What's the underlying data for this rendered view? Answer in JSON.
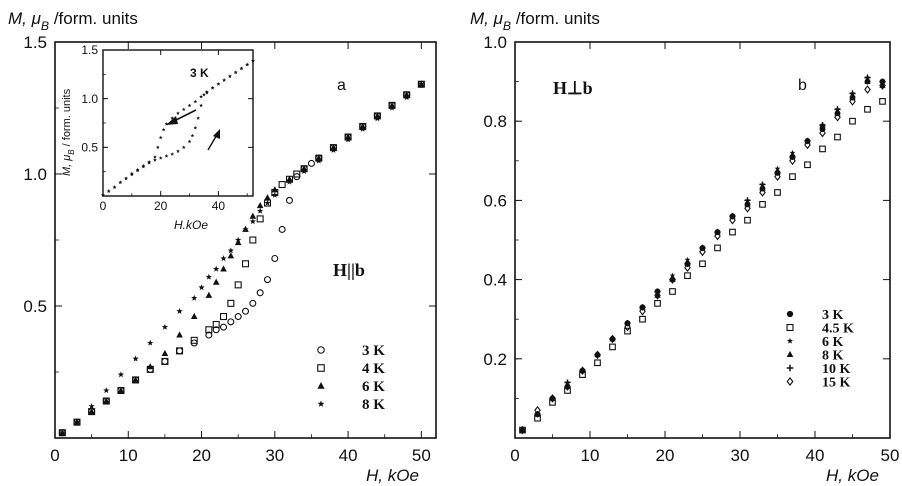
{
  "colors": {
    "ink": "#111111",
    "background": "#ffffff"
  },
  "chart_data": [
    {
      "panel": "a",
      "type": "scatter",
      "ylabel_prefix": "M, μ",
      "ylabel_sub": "B",
      "ylabel_suffix": "/form. units",
      "xlabel": "H, kOe",
      "xlim": [
        0,
        52
      ],
      "ylim": [
        0,
        1.5
      ],
      "xticks": [
        0,
        10,
        20,
        30,
        40,
        50
      ],
      "yticks": [
        0.5,
        1.0,
        1.5
      ],
      "ytick_labels": [
        "0.5",
        "1.0",
        "1.5"
      ],
      "panel_label": "a",
      "annotation": "H||b",
      "grid": false,
      "legend_position": "bottom-right",
      "series": [
        {
          "name": "3 K",
          "marker": "circle-open",
          "x": [
            1,
            3,
            5,
            7,
            9,
            11,
            13,
            15,
            17,
            19,
            21,
            22,
            23,
            24,
            25,
            26,
            27,
            28,
            29,
            30,
            31,
            32,
            33,
            34,
            35,
            36,
            38,
            40,
            42,
            44,
            46,
            48,
            50
          ],
          "y": [
            0.02,
            0.06,
            0.1,
            0.14,
            0.18,
            0.22,
            0.26,
            0.29,
            0.33,
            0.36,
            0.39,
            0.41,
            0.42,
            0.44,
            0.46,
            0.48,
            0.51,
            0.55,
            0.6,
            0.68,
            0.79,
            0.9,
            0.99,
            1.02,
            1.04,
            1.06,
            1.1,
            1.14,
            1.18,
            1.22,
            1.26,
            1.3,
            1.34
          ]
        },
        {
          "name": "4 K",
          "marker": "square-open",
          "x": [
            1,
            3,
            5,
            7,
            9,
            11,
            13,
            15,
            17,
            19,
            21,
            22,
            23,
            24,
            25,
            26,
            27,
            28,
            29,
            30,
            31,
            32,
            33,
            34,
            36,
            38,
            40,
            42,
            44,
            46,
            48,
            50
          ],
          "y": [
            0.02,
            0.06,
            0.1,
            0.14,
            0.18,
            0.22,
            0.26,
            0.29,
            0.33,
            0.37,
            0.41,
            0.43,
            0.46,
            0.51,
            0.58,
            0.66,
            0.75,
            0.83,
            0.89,
            0.93,
            0.96,
            0.98,
            1.0,
            1.02,
            1.06,
            1.1,
            1.14,
            1.18,
            1.22,
            1.26,
            1.3,
            1.34
          ]
        },
        {
          "name": "6 K",
          "marker": "triangle",
          "x": [
            1,
            3,
            5,
            7,
            9,
            11,
            13,
            15,
            17,
            19,
            21,
            22,
            23,
            24,
            25,
            26,
            27,
            28,
            29,
            30,
            32,
            34,
            36,
            38,
            40,
            42,
            44,
            46,
            48,
            50
          ],
          "y": [
            0.02,
            0.06,
            0.1,
            0.14,
            0.18,
            0.22,
            0.27,
            0.32,
            0.39,
            0.46,
            0.54,
            0.59,
            0.64,
            0.69,
            0.74,
            0.79,
            0.84,
            0.88,
            0.91,
            0.94,
            0.98,
            1.02,
            1.06,
            1.1,
            1.14,
            1.18,
            1.22,
            1.26,
            1.3,
            1.34
          ]
        },
        {
          "name": "8 K",
          "marker": "star",
          "x": [
            1,
            3,
            5,
            7,
            9,
            11,
            13,
            15,
            17,
            19,
            20,
            21,
            22,
            23,
            24,
            25,
            26,
            27,
            28,
            29,
            30,
            32,
            34,
            36,
            38,
            40,
            42,
            44,
            46,
            48,
            50
          ],
          "y": [
            0.02,
            0.06,
            0.12,
            0.18,
            0.24,
            0.3,
            0.36,
            0.42,
            0.48,
            0.53,
            0.57,
            0.61,
            0.64,
            0.68,
            0.71,
            0.75,
            0.79,
            0.82,
            0.86,
            0.89,
            0.92,
            0.97,
            1.01,
            1.05,
            1.09,
            1.13,
            1.17,
            1.21,
            1.25,
            1.29,
            1.34
          ]
        }
      ],
      "inset": {
        "title": "3 K",
        "xlabel": "H.kOe",
        "ylabel_prefix": "M, μ",
        "ylabel_sub": "B",
        "ylabel_suffix": "/ form. units",
        "xlim": [
          0,
          52
        ],
        "ylim": [
          0,
          1.5
        ],
        "xticks": [
          0,
          20,
          40
        ],
        "yticks": [
          0.5,
          1.0,
          1.5
        ],
        "ytick_labels": [
          "0.5",
          "1.0",
          "1.5"
        ],
        "series": [
          {
            "name": "increasing field",
            "x": [
              0,
              2,
              4,
              6,
              8,
              10,
              12,
              14,
              16,
              18,
              20,
              22,
              24,
              26,
              28,
              30,
              31,
              32,
              33,
              34,
              35,
              36,
              38,
              40,
              42,
              44,
              46,
              48,
              50,
              52
            ],
            "y": [
              0.01,
              0.05,
              0.09,
              0.14,
              0.18,
              0.22,
              0.26,
              0.3,
              0.34,
              0.37,
              0.39,
              0.41,
              0.43,
              0.46,
              0.5,
              0.56,
              0.62,
              0.7,
              0.8,
              0.93,
              1.04,
              1.07,
              1.11,
              1.15,
              1.19,
              1.23,
              1.27,
              1.31,
              1.35,
              1.39
            ]
          },
          {
            "name": "decreasing field",
            "x": [
              52,
              50,
              48,
              46,
              44,
              42,
              40,
              38,
              36,
              34,
              32,
              30,
              28,
              26,
              24,
              22,
              21,
              20,
              19,
              18,
              16,
              14,
              12,
              10,
              8,
              6,
              4,
              2,
              0
            ],
            "y": [
              1.39,
              1.35,
              1.31,
              1.27,
              1.23,
              1.19,
              1.15,
              1.11,
              1.06,
              1.02,
              0.97,
              0.93,
              0.89,
              0.85,
              0.8,
              0.74,
              0.68,
              0.6,
              0.5,
              0.4,
              0.35,
              0.31,
              0.27,
              0.23,
              0.18,
              0.14,
              0.09,
              0.05,
              0.01
            ]
          }
        ]
      }
    },
    {
      "panel": "b",
      "type": "scatter",
      "ylabel_prefix": "M, μ",
      "ylabel_sub": "B",
      "ylabel_suffix": "/form. units",
      "xlabel": "H, kOe",
      "xlim": [
        0,
        50
      ],
      "ylim": [
        0,
        1.0
      ],
      "xticks": [
        0,
        10,
        20,
        30,
        40,
        50
      ],
      "yticks": [
        0.2,
        0.4,
        0.6,
        0.8,
        1.0
      ],
      "ytick_labels": [
        "0.2",
        "0.4",
        "0.6",
        "0.8",
        "1.0"
      ],
      "panel_label": "b",
      "annotation": "H⊥b",
      "grid": false,
      "legend_position": "bottom-right",
      "series": [
        {
          "name": "3 K",
          "marker": "circle-filled",
          "x": [
            1,
            3,
            5,
            7,
            9,
            11,
            13,
            15,
            17,
            19,
            21,
            23,
            25,
            27,
            29,
            31,
            33,
            35,
            37,
            39,
            41,
            43,
            45,
            47,
            49
          ],
          "y": [
            0.02,
            0.06,
            0.1,
            0.13,
            0.17,
            0.21,
            0.25,
            0.29,
            0.33,
            0.37,
            0.4,
            0.44,
            0.48,
            0.52,
            0.56,
            0.59,
            0.63,
            0.67,
            0.71,
            0.75,
            0.78,
            0.82,
            0.86,
            0.9,
            0.9
          ]
        },
        {
          "name": "4.5 K",
          "marker": "square-open",
          "x": [
            1,
            3,
            5,
            7,
            9,
            11,
            13,
            15,
            17,
            19,
            21,
            23,
            25,
            27,
            29,
            31,
            33,
            35,
            37,
            39,
            41,
            43,
            45,
            47,
            49
          ],
          "y": [
            0.02,
            0.05,
            0.09,
            0.12,
            0.16,
            0.19,
            0.23,
            0.27,
            0.3,
            0.34,
            0.37,
            0.41,
            0.44,
            0.48,
            0.52,
            0.55,
            0.59,
            0.62,
            0.66,
            0.69,
            0.73,
            0.76,
            0.8,
            0.83,
            0.85
          ]
        },
        {
          "name": "6 K",
          "marker": "star",
          "x": [
            1,
            3,
            5,
            7,
            9,
            11,
            13,
            15,
            17,
            19,
            21,
            23,
            25,
            27,
            29,
            31,
            33,
            35,
            37,
            39,
            41,
            43,
            45,
            47,
            49
          ],
          "y": [
            0.02,
            0.06,
            0.1,
            0.14,
            0.17,
            0.21,
            0.25,
            0.29,
            0.33,
            0.37,
            0.41,
            0.45,
            0.48,
            0.52,
            0.56,
            0.6,
            0.64,
            0.68,
            0.72,
            0.75,
            0.79,
            0.83,
            0.87,
            0.91,
            0.9
          ]
        },
        {
          "name": "8 K",
          "marker": "triangle",
          "x": [
            1,
            3,
            5,
            7,
            9,
            11,
            13,
            15,
            17,
            19,
            21,
            23,
            25,
            27,
            29,
            31,
            33,
            35,
            37,
            39,
            41,
            43,
            45,
            47,
            49
          ],
          "y": [
            0.02,
            0.06,
            0.1,
            0.13,
            0.17,
            0.21,
            0.25,
            0.29,
            0.33,
            0.36,
            0.4,
            0.44,
            0.48,
            0.52,
            0.56,
            0.59,
            0.63,
            0.67,
            0.71,
            0.75,
            0.79,
            0.82,
            0.86,
            0.9,
            0.89
          ]
        },
        {
          "name": "10 K",
          "marker": "plus",
          "x": [
            1,
            3,
            5,
            7,
            9,
            11,
            13,
            15,
            17,
            19,
            21,
            23,
            25,
            27,
            29,
            31,
            33,
            35,
            37,
            39,
            41,
            43,
            45,
            47,
            49
          ],
          "y": [
            0.02,
            0.06,
            0.1,
            0.14,
            0.17,
            0.21,
            0.25,
            0.29,
            0.33,
            0.37,
            0.4,
            0.44,
            0.48,
            0.52,
            0.56,
            0.6,
            0.64,
            0.67,
            0.71,
            0.75,
            0.79,
            0.83,
            0.87,
            0.91,
            0.9
          ]
        },
        {
          "name": "15 K",
          "marker": "diamond-open",
          "x": [
            1,
            3,
            5,
            7,
            9,
            11,
            13,
            15,
            17,
            19,
            21,
            23,
            25,
            27,
            29,
            31,
            33,
            35,
            37,
            39,
            41,
            43,
            45,
            47,
            49
          ],
          "y": [
            0.02,
            0.07,
            0.1,
            0.13,
            0.17,
            0.21,
            0.25,
            0.28,
            0.32,
            0.36,
            0.4,
            0.43,
            0.47,
            0.51,
            0.55,
            0.58,
            0.62,
            0.66,
            0.7,
            0.74,
            0.77,
            0.81,
            0.85,
            0.88,
            0.89
          ]
        }
      ]
    }
  ]
}
